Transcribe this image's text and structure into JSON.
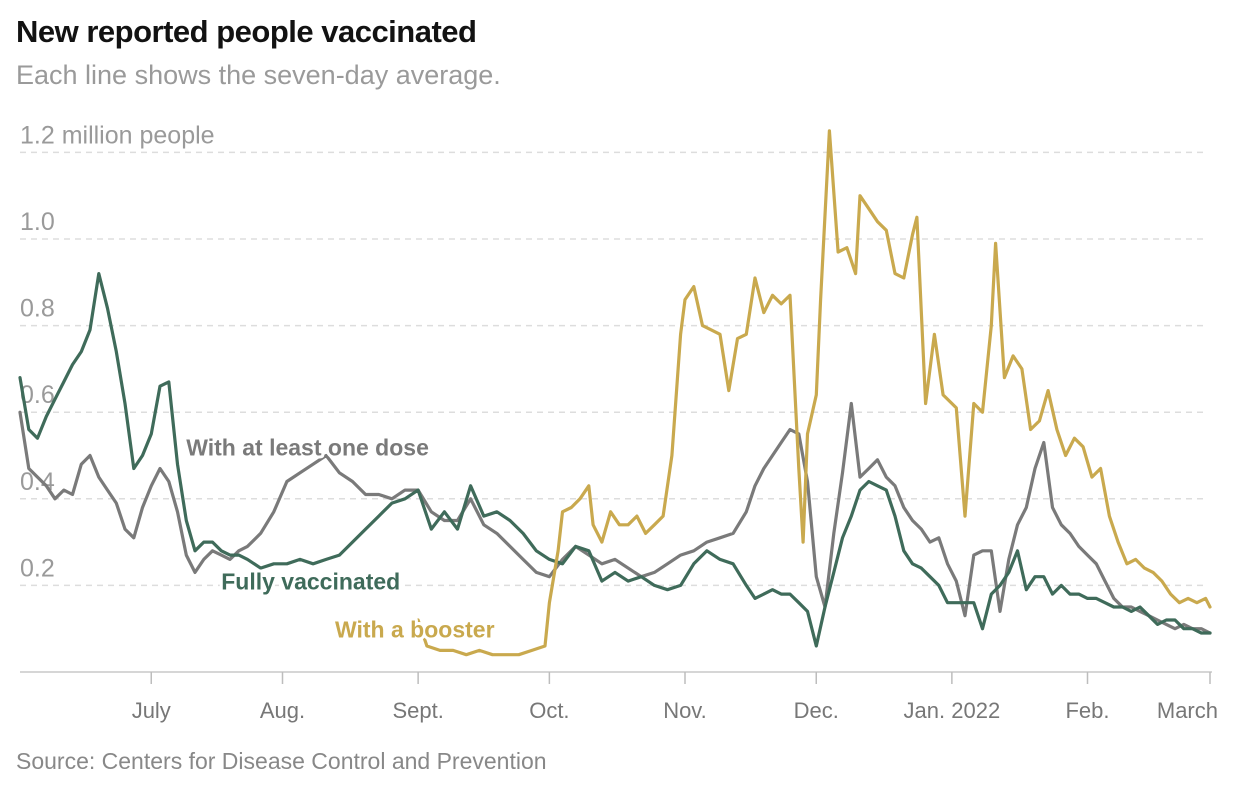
{
  "title": "New reported people vaccinated",
  "subtitle": "Each line shows the seven-day average.",
  "source": "Source: Centers for Disease Control and Prevention",
  "chart_data": {
    "type": "line",
    "title": "New reported people vaccinated",
    "subtitle": "Each line shows the seven-day average.",
    "xlabel": "",
    "ylabel": "people",
    "ylim": [
      0,
      1.2
    ],
    "y_unit": "million people",
    "x_unit": "days since 2021-06-04",
    "xlim": [
      0,
      272
    ],
    "yticks": [
      {
        "value": 0.2,
        "label": "0.2"
      },
      {
        "value": 0.4,
        "label": "0.4"
      },
      {
        "value": 0.6,
        "label": "0.6"
      },
      {
        "value": 0.8,
        "label": "0.8"
      },
      {
        "value": 1.0,
        "label": "1.0"
      },
      {
        "value": 1.2,
        "label": "1.2 million people"
      }
    ],
    "xticks": [
      {
        "day": 30,
        "label": "July"
      },
      {
        "day": 60,
        "label": "Aug."
      },
      {
        "day": 91,
        "label": "Sept."
      },
      {
        "day": 121,
        "label": "Oct."
      },
      {
        "day": 152,
        "label": "Nov."
      },
      {
        "day": 182,
        "label": "Dec."
      },
      {
        "day": 213,
        "label": "Jan. 2022"
      },
      {
        "day": 244,
        "label": "Feb."
      },
      {
        "day": 272,
        "label": "March"
      }
    ],
    "grid": true,
    "series": [
      {
        "name": "With at least one dose",
        "color": "#7a7a7a",
        "label_at": [
          38,
          0.5
        ],
        "label_color": "#7a7a7a",
        "x": [
          0,
          2,
          4,
          6,
          8,
          10,
          12,
          14,
          16,
          18,
          20,
          22,
          24,
          26,
          28,
          30,
          32,
          34,
          36,
          38,
          40,
          42,
          44,
          46,
          48,
          50,
          52,
          55,
          58,
          61,
          64,
          67,
          70,
          73,
          76,
          79,
          82,
          85,
          88,
          91,
          94,
          97,
          100,
          103,
          106,
          109,
          112,
          115,
          118,
          121,
          124,
          127,
          130,
          133,
          136,
          139,
          142,
          145,
          148,
          151,
          154,
          157,
          160,
          163,
          166,
          168,
          170,
          172,
          174,
          176,
          178,
          180,
          182,
          184,
          186,
          188,
          190,
          192,
          194,
          196,
          198,
          200,
          202,
          204,
          206,
          208,
          210,
          212,
          214,
          216,
          218,
          220,
          222,
          224,
          226,
          228,
          230,
          232,
          234,
          236,
          238,
          240,
          242,
          244,
          246,
          248,
          250,
          252,
          254,
          256,
          258,
          260,
          262,
          264,
          266,
          268,
          270,
          272
        ],
        "y": [
          0.6,
          0.47,
          0.45,
          0.43,
          0.4,
          0.42,
          0.41,
          0.48,
          0.5,
          0.45,
          0.42,
          0.39,
          0.33,
          0.31,
          0.38,
          0.43,
          0.47,
          0.44,
          0.37,
          0.27,
          0.23,
          0.26,
          0.28,
          0.27,
          0.26,
          0.28,
          0.29,
          0.32,
          0.37,
          0.44,
          0.46,
          0.48,
          0.5,
          0.46,
          0.44,
          0.41,
          0.41,
          0.4,
          0.42,
          0.42,
          0.37,
          0.35,
          0.35,
          0.4,
          0.34,
          0.32,
          0.29,
          0.26,
          0.23,
          0.22,
          0.26,
          0.29,
          0.27,
          0.25,
          0.26,
          0.24,
          0.22,
          0.23,
          0.25,
          0.27,
          0.28,
          0.3,
          0.31,
          0.32,
          0.37,
          0.43,
          0.47,
          0.5,
          0.53,
          0.56,
          0.55,
          0.44,
          0.22,
          0.15,
          0.32,
          0.46,
          0.62,
          0.45,
          0.47,
          0.49,
          0.45,
          0.43,
          0.38,
          0.35,
          0.33,
          0.3,
          0.31,
          0.25,
          0.21,
          0.13,
          0.27,
          0.28,
          0.28,
          0.14,
          0.26,
          0.34,
          0.38,
          0.47,
          0.53,
          0.38,
          0.34,
          0.32,
          0.29,
          0.27,
          0.25,
          0.21,
          0.17,
          0.15,
          0.15,
          0.14,
          0.13,
          0.12,
          0.11,
          0.1,
          0.11,
          0.1,
          0.1,
          0.09
        ]
      },
      {
        "name": "Fully vaccinated",
        "color": "#3f6b5a",
        "label_at": [
          46,
          0.19
        ],
        "label_color": "#3f6b5a",
        "x": [
          0,
          2,
          4,
          6,
          8,
          10,
          12,
          14,
          16,
          18,
          20,
          22,
          24,
          26,
          28,
          30,
          32,
          34,
          36,
          38,
          40,
          42,
          44,
          46,
          48,
          50,
          52,
          55,
          58,
          61,
          64,
          67,
          70,
          73,
          76,
          79,
          82,
          85,
          88,
          91,
          94,
          97,
          100,
          103,
          106,
          109,
          112,
          115,
          118,
          121,
          124,
          127,
          130,
          133,
          136,
          139,
          142,
          145,
          148,
          151,
          154,
          157,
          160,
          163,
          166,
          168,
          170,
          172,
          174,
          176,
          178,
          180,
          182,
          184,
          186,
          188,
          190,
          192,
          194,
          196,
          198,
          200,
          202,
          204,
          206,
          208,
          210,
          212,
          214,
          216,
          218,
          220,
          222,
          224,
          226,
          228,
          230,
          232,
          234,
          236,
          238,
          240,
          242,
          244,
          246,
          248,
          250,
          252,
          254,
          256,
          258,
          260,
          262,
          264,
          266,
          268,
          270,
          272
        ],
        "y": [
          0.68,
          0.56,
          0.54,
          0.59,
          0.63,
          0.67,
          0.71,
          0.74,
          0.79,
          0.92,
          0.84,
          0.74,
          0.62,
          0.47,
          0.5,
          0.55,
          0.66,
          0.67,
          0.48,
          0.35,
          0.28,
          0.3,
          0.3,
          0.28,
          0.27,
          0.27,
          0.26,
          0.24,
          0.25,
          0.25,
          0.26,
          0.25,
          0.26,
          0.27,
          0.3,
          0.33,
          0.36,
          0.39,
          0.4,
          0.42,
          0.33,
          0.37,
          0.33,
          0.43,
          0.36,
          0.37,
          0.35,
          0.32,
          0.28,
          0.26,
          0.25,
          0.29,
          0.28,
          0.21,
          0.23,
          0.21,
          0.22,
          0.2,
          0.19,
          0.2,
          0.25,
          0.28,
          0.26,
          0.25,
          0.2,
          0.17,
          0.18,
          0.19,
          0.18,
          0.18,
          0.16,
          0.14,
          0.06,
          0.15,
          0.23,
          0.31,
          0.36,
          0.42,
          0.44,
          0.43,
          0.42,
          0.36,
          0.28,
          0.25,
          0.24,
          0.22,
          0.2,
          0.16,
          0.16,
          0.16,
          0.16,
          0.1,
          0.18,
          0.2,
          0.23,
          0.28,
          0.19,
          0.22,
          0.22,
          0.18,
          0.2,
          0.18,
          0.18,
          0.17,
          0.17,
          0.16,
          0.15,
          0.15,
          0.14,
          0.15,
          0.13,
          0.11,
          0.12,
          0.12,
          0.1,
          0.1,
          0.09,
          0.09
        ]
      },
      {
        "name": "With a booster",
        "color": "#c9a94e",
        "label_at": [
          72,
          0.08
        ],
        "label_color": "#c9a94e",
        "x": [
          91,
          93,
          96,
          99,
          102,
          105,
          108,
          111,
          114,
          117,
          120,
          121,
          123,
          124,
          126,
          128,
          130,
          131,
          133,
          135,
          137,
          139,
          141,
          143,
          145,
          147,
          149,
          151,
          152,
          154,
          156,
          158,
          160,
          162,
          164,
          166,
          168,
          170,
          172,
          174,
          176,
          178,
          179,
          180,
          182,
          183,
          185,
          187,
          189,
          191,
          192,
          194,
          196,
          198,
          200,
          202,
          204,
          205,
          207,
          209,
          211,
          213,
          214,
          216,
          218,
          220,
          222,
          223,
          225,
          227,
          229,
          231,
          233,
          235,
          237,
          239,
          241,
          243,
          245,
          247,
          249,
          251,
          253,
          255,
          257,
          259,
          261,
          263,
          265,
          267,
          269,
          271,
          272
        ],
        "y": [
          0.12,
          0.06,
          0.05,
          0.05,
          0.04,
          0.05,
          0.04,
          0.04,
          0.04,
          0.05,
          0.06,
          0.16,
          0.28,
          0.37,
          0.38,
          0.4,
          0.43,
          0.34,
          0.3,
          0.37,
          0.34,
          0.34,
          0.36,
          0.32,
          0.34,
          0.36,
          0.5,
          0.78,
          0.86,
          0.89,
          0.8,
          0.79,
          0.78,
          0.65,
          0.77,
          0.78,
          0.91,
          0.83,
          0.87,
          0.85,
          0.87,
          0.47,
          0.3,
          0.55,
          0.64,
          0.86,
          1.25,
          0.97,
          0.98,
          0.92,
          1.1,
          1.07,
          1.04,
          1.02,
          0.92,
          0.91,
          1.01,
          1.05,
          0.62,
          0.78,
          0.64,
          0.62,
          0.61,
          0.36,
          0.62,
          0.6,
          0.8,
          0.99,
          0.68,
          0.73,
          0.7,
          0.56,
          0.58,
          0.65,
          0.56,
          0.5,
          0.54,
          0.52,
          0.45,
          0.47,
          0.36,
          0.3,
          0.25,
          0.26,
          0.24,
          0.23,
          0.21,
          0.18,
          0.16,
          0.17,
          0.16,
          0.17,
          0.15
        ]
      }
    ]
  }
}
